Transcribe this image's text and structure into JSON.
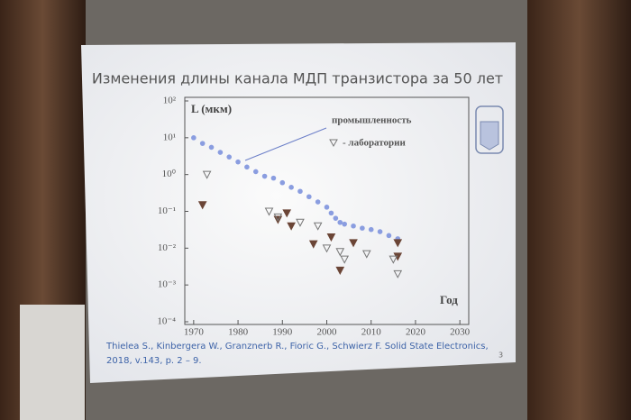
{
  "chart_data": {
    "type": "scatter",
    "title": "Изменения длины канала МДП транзистора за 50 лет",
    "y_label": "L (мкм)",
    "x_label": "Год",
    "log_y": true,
    "xlim": [
      1968,
      2032
    ],
    "xticks": [
      1970,
      1980,
      1990,
      2000,
      2010,
      2020,
      2030
    ],
    "ylim": [
      0.0001,
      100
    ],
    "yticks": [
      {
        "value": 100,
        "label": "10²"
      },
      {
        "value": 10,
        "label": "10¹"
      },
      {
        "value": 1,
        "label": "10⁰"
      },
      {
        "value": 0.1,
        "label": "10⁻¹"
      },
      {
        "value": 0.01,
        "label": "10⁻²"
      },
      {
        "value": 0.001,
        "label": "10⁻³"
      },
      {
        "value": 0.0001,
        "label": "10⁻⁴"
      }
    ],
    "series": [
      {
        "name": "промышленность",
        "color": "#8a9de0",
        "marker": "circle",
        "x": [
          1970,
          1972,
          1974,
          1976,
          1978,
          1980,
          1982,
          1984,
          1986,
          1988,
          1990,
          1992,
          1994,
          1996,
          1998,
          2000,
          2001,
          2002,
          2003,
          2004,
          2006,
          2008,
          2010,
          2012,
          2014,
          2016
        ],
        "values": [
          10,
          7,
          5.5,
          4,
          3,
          2.2,
          1.6,
          1.2,
          0.9,
          0.8,
          0.6,
          0.45,
          0.35,
          0.25,
          0.18,
          0.13,
          0.09,
          0.065,
          0.05,
          0.045,
          0.04,
          0.035,
          0.032,
          0.028,
          0.022,
          0.018
        ]
      },
      {
        "color": "#6b4536",
        "marker": "triangle-filled",
        "x": [
          1972,
          1989,
          1991,
          1992,
          1997,
          2001,
          2003,
          2006,
          2016,
          2016
        ],
        "values": [
          0.15,
          0.06,
          0.09,
          0.04,
          0.013,
          0.02,
          0.0025,
          0.014,
          0.006,
          0.014
        ]
      },
      {
        "name": "- лаборатории",
        "color": "#777777",
        "marker": "triangle-open",
        "x": [
          1973,
          1987,
          1989,
          1994,
          1998,
          2000,
          2003,
          2004,
          2009,
          2015,
          2016
        ],
        "values": [
          1.0,
          0.1,
          0.07,
          0.05,
          0.04,
          0.01,
          0.008,
          0.005,
          0.007,
          0.005,
          0.002
        ]
      }
    ],
    "citation": [
      "Thielea S., Kinbergera W., Granznerb R., Fioric G., Schwierz F. Solid State Electronics,",
      "2018, v.143, p. 2 – 9."
    ],
    "page_number": "3"
  }
}
